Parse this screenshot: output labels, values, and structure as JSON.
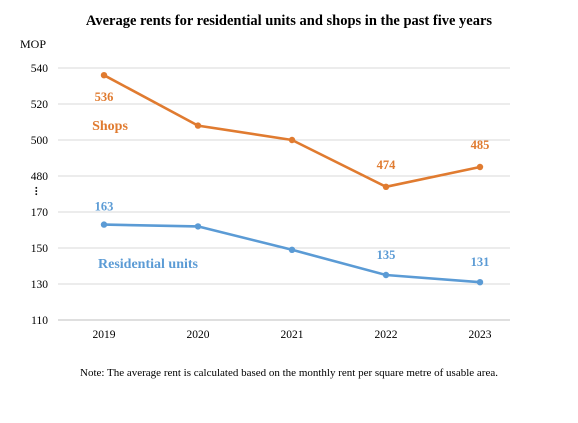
{
  "chart_data": {
    "type": "line",
    "title": "Average rents for residential units and shops in the past five years",
    "unit_label": "MOP",
    "axis_break_label": "⠇",
    "categories": [
      "2019",
      "2020",
      "2021",
      "2022",
      "2023"
    ],
    "upper_ylim": [
      480,
      540
    ],
    "upper_ticks": [
      "540",
      "520",
      "500",
      "480"
    ],
    "lower_ylim": [
      110,
      170
    ],
    "lower_ticks": [
      "170",
      "150",
      "130",
      "110"
    ],
    "grid": "horizontal",
    "series": [
      {
        "name": "Shops",
        "color": "#E07B30",
        "values": [
          536,
          508,
          500,
          474,
          485
        ],
        "data_labels": [
          "536",
          "",
          "",
          "474",
          "485"
        ],
        "panel": "upper"
      },
      {
        "name": "Residential units",
        "color": "#5B9BD5",
        "values": [
          163,
          162,
          149,
          135,
          131
        ],
        "data_labels": [
          "163",
          "",
          "",
          "135",
          "131"
        ],
        "panel": "lower"
      }
    ],
    "note": "Note: The average  rent is calculated  based on the monthly rent per square metre of usable area."
  }
}
